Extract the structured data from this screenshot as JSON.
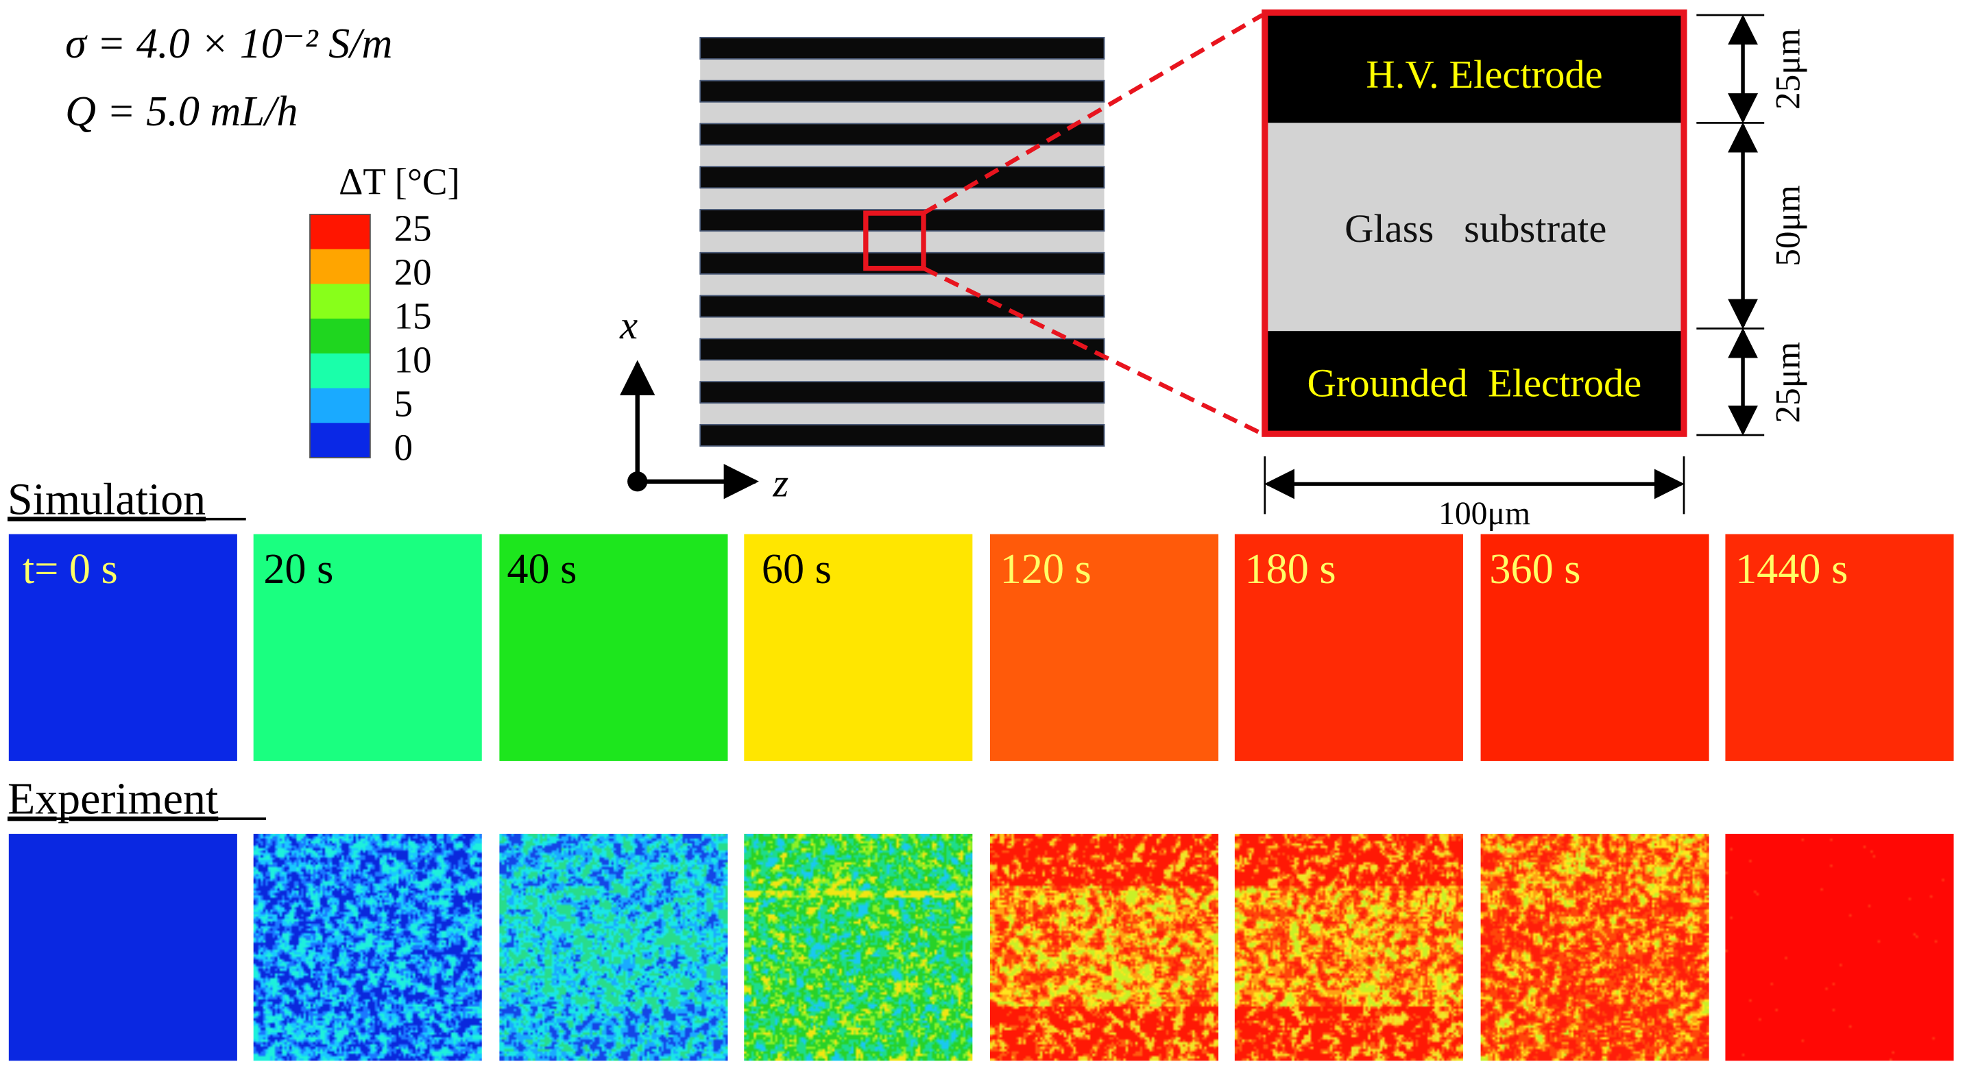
{
  "params": {
    "sigma_line": "σ = 4.0 × 10⁻² S/m",
    "q_line": "Q = 5.0 mL/h"
  },
  "legend": {
    "title": "ΔT [°C]",
    "ticks": [
      "25",
      "20",
      "15",
      "10",
      "5",
      "0"
    ],
    "colors": [
      "#ff1500",
      "#ffa500",
      "#88ff1a",
      "#1fd61f",
      "#1affaa",
      "#1aaaff",
      "#0a28e6"
    ]
  },
  "axes": {
    "x_label": "x",
    "z_label": "z"
  },
  "electrode_pattern": {
    "black_stripe_count": 10,
    "stripe_color": "#0a0a0a",
    "gap_color": "#d3d3d3",
    "highlight_color": "#e8141e"
  },
  "zoom": {
    "top_label": "H.V. Electrode",
    "middle_label": "Glass   substrate",
    "bottom_label": "Grounded  Electrode",
    "label_color": "#ffff00",
    "dim_top": "25μm",
    "dim_middle": "50μm",
    "dim_bottom": "25μm",
    "dim_width": "100μm"
  },
  "simulation": {
    "heading": "Simulation",
    "panels": [
      {
        "label": "t= 0 s",
        "color": "#0a28e6",
        "text_color": "#ffff66"
      },
      {
        "label": "20 s",
        "color": "#1aff80",
        "text_color": "#000000"
      },
      {
        "label": "40 s",
        "color": "#1de61d",
        "text_color": "#000000"
      },
      {
        "label": "60 s",
        "color": "#ffe600",
        "text_color": "#000000"
      },
      {
        "label": "120 s",
        "color": "#ff5a0a",
        "text_color": "#ffff66"
      },
      {
        "label": "180 s",
        "color": "#ff2a05",
        "text_color": "#ffff66"
      },
      {
        "label": "360 s",
        "color": "#ff2200",
        "text_color": "#ffff66"
      },
      {
        "label": "1440 s",
        "color": "#ff2a05",
        "text_color": "#ffff66"
      }
    ]
  },
  "experiment": {
    "heading": "Experiment",
    "panels": [
      {
        "name": "uniform-blue"
      },
      {
        "name": "noisy-blue-cyan"
      },
      {
        "name": "noisy-cyan"
      },
      {
        "name": "noisy-green-yellow"
      },
      {
        "name": "noisy-red-yellow-banded"
      },
      {
        "name": "noisy-red-yellow-banded"
      },
      {
        "name": "noisy-red-yellow"
      },
      {
        "name": "uniform-red"
      }
    ]
  }
}
